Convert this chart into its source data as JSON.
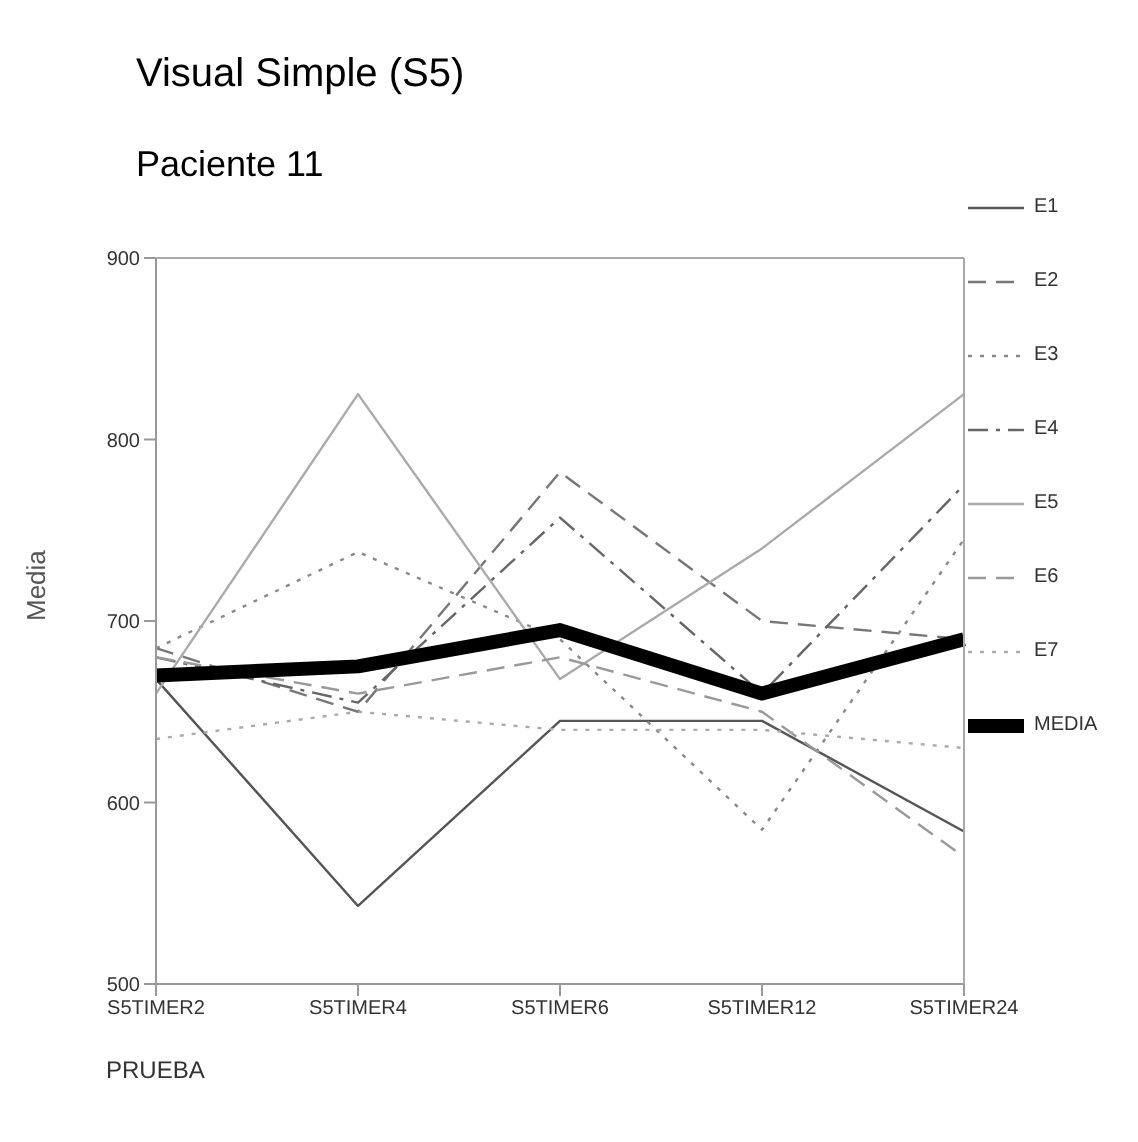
{
  "chart_data": {
    "type": "line",
    "title": "Visual Simple (S5)",
    "subtitle": "Paciente 11",
    "xlabel": "PRUEBA",
    "ylabel": "Media",
    "categories": [
      "S5TIMER2",
      "S5TIMER4",
      "S5TIMER6",
      "S5TIMER12",
      "S5TIMER24"
    ],
    "ylim": [
      500,
      900
    ],
    "yticks": [
      500,
      600,
      700,
      800,
      900
    ],
    "grid": false,
    "legend": "right",
    "marker": "none",
    "series": [
      {
        "name": "E1",
        "color": "#555555",
        "line_style": "solid",
        "values": [
          668,
          543,
          645,
          645,
          584
        ]
      },
      {
        "name": "E2",
        "color": "#777777",
        "line_style": "dashed",
        "values": [
          685,
          650,
          782,
          700,
          690
        ]
      },
      {
        "name": "E3",
        "color": "#888888",
        "line_style": "dotted",
        "values": [
          685,
          738,
          690,
          585,
          745
        ]
      },
      {
        "name": "E4",
        "color": "#666666",
        "line_style": "dashdot",
        "values": [
          680,
          655,
          757,
          660,
          775
        ]
      },
      {
        "name": "E5",
        "color": "#aaaaaa",
        "line_style": "solid",
        "values": [
          660,
          825,
          668,
          740,
          825
        ]
      },
      {
        "name": "E6",
        "color": "#999999",
        "line_style": "dashed",
        "values": [
          680,
          660,
          680,
          650,
          570
        ]
      },
      {
        "name": "E7",
        "color": "#aaaaaa",
        "line_style": "dotted",
        "values": [
          635,
          650,
          640,
          640,
          630
        ]
      },
      {
        "name": "MEDIA",
        "color": "#000000",
        "line_style": "solid",
        "values": [
          670,
          675,
          695,
          660,
          690
        ]
      }
    ]
  }
}
